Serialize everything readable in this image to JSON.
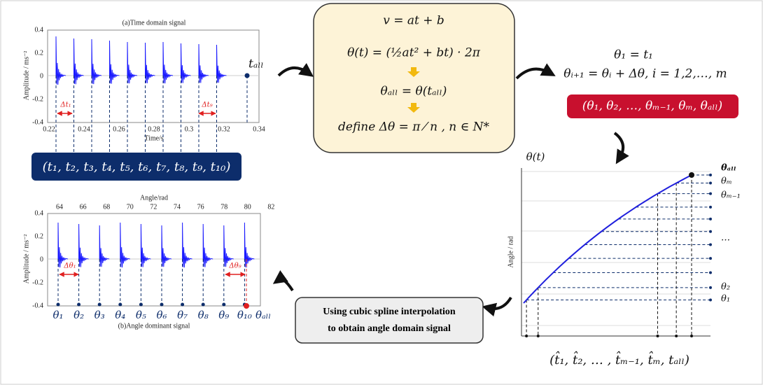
{
  "panel_a": {
    "title": "(a)Time domain signal",
    "y_label": "Amplitude / ms⁻²",
    "x_label": "Time/s",
    "yticks": [
      "0.4",
      "0.2",
      "0",
      "-0.2",
      "-0.4"
    ],
    "xticks": [
      "0.22",
      "0.24",
      "0.26",
      "0.28",
      "0.3",
      "0.32",
      "0.34"
    ],
    "t_all": "tₐₗₗ",
    "delta_first": "Δt₁",
    "delta_last": "Δt₉",
    "sequence": "(t₁, t₂, t₃, t₄, t₅, t₆, t₇, t₈, t₉, t₁₀)"
  },
  "equations": [
    "v = at + b",
    "θ(t)  =  (½at² + bt) · 2π",
    "θₐₗₗ = θ(tₐₗₗ)",
    "define Δθ = π ⁄ n , n ∈ N*"
  ],
  "recursion": {
    "lines": [
      "θ₁ =  t₁",
      "θᵢ₊₁ = θᵢ + Δθ, i = 1,2,…, m"
    ],
    "sequence": "(θ₁, θ₂, …, θₘ₋₁, θₘ, θₐₗₗ)"
  },
  "angle_curve": {
    "y_title": "θ(t)",
    "y_label": "Angle / rad",
    "levels": [
      "θₐₗₗ",
      "θₘ",
      "θₘ₋₁",
      "…",
      "θ₂",
      "θ₁"
    ],
    "sequence": "(t̂₁, t̂₂,   …   , t̂ₘ₋₁, t̂ₘ, tₐₗₗ)"
  },
  "interpolation": {
    "lines": [
      "Using cubic spline interpolation",
      "to obtain angle domain signal"
    ]
  },
  "panel_b": {
    "top_label": "Angle/rad",
    "top_ticks": [
      "64",
      "66",
      "68",
      "70",
      "72",
      "74",
      "76",
      "78",
      "80",
      "82"
    ],
    "yticks": [
      "0.4",
      "0.2",
      "0",
      "-0.2",
      "-0.4"
    ],
    "y_label": "Amplitude / ms⁻²",
    "theta_labels": [
      "θ₁",
      "θ₂",
      "θ₃",
      "θ₄",
      "θ₅",
      "θ₆",
      "θ₇",
      "θ₈",
      "θ₉",
      "θ₁₀"
    ],
    "theta_all": "θₐₗₗ",
    "title": "(b)Angle dominant signal",
    "delta_first": "Δθ₁",
    "delta_last": "Δθ₉"
  }
}
